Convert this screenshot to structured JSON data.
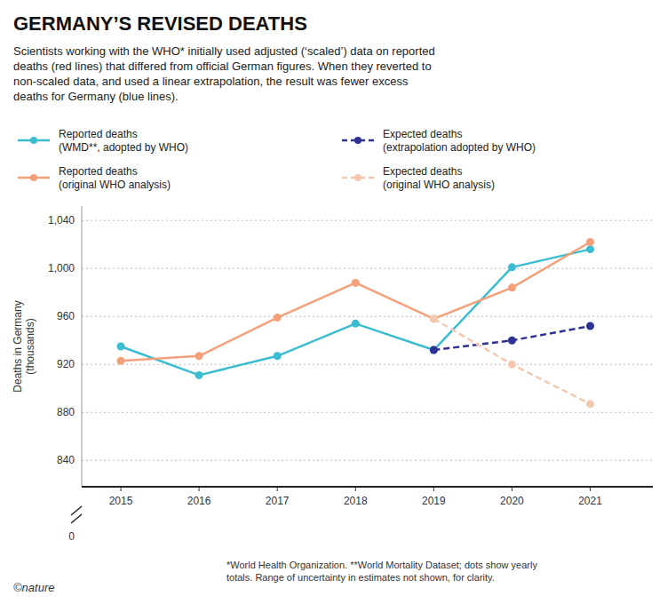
{
  "chart_data": {
    "type": "line",
    "title": "GERMANY’S REVISED DEATHS",
    "subtitle": "Scientists working with the WHO* initially used adjusted (‘scaled’) data on reported\ndeaths (red lines) that differed from official German figures. When they reverted to\nnon-scaled data, and used a linear extrapolation, the result was fewer excess\ndeaths for Germany (blue lines).",
    "x": [
      2015,
      2016,
      2017,
      2018,
      2019,
      2020,
      2021
    ],
    "series": [
      {
        "name": "Reported deaths\n(WMD**, adopted by WHO)",
        "color": "#3bbcd0",
        "line_style": "solid",
        "marker": "circle",
        "values": [
          935,
          911,
          927,
          954,
          932,
          1001,
          1016
        ]
      },
      {
        "name": "Expected deaths\n(extrapolation adopted by WHO)",
        "color": "#2e3192",
        "line_style": "dashed",
        "marker": "circle",
        "values": [
          null,
          null,
          null,
          null,
          932,
          940,
          952
        ]
      },
      {
        "name": "Reported deaths\n(original WHO analysis)",
        "color": "#f4a07a",
        "line_style": "solid",
        "marker": "circle",
        "values": [
          923,
          927,
          959,
          988,
          958,
          984,
          1022
        ]
      },
      {
        "name": "Expected deaths\n(original WHO analysis)",
        "color": "#f2c9b0",
        "line_style": "dashed",
        "marker": "circle",
        "values": [
          null,
          null,
          null,
          null,
          958,
          920,
          887
        ]
      }
    ],
    "xlim": [
      2014.5,
      2021.8
    ],
    "xticks": [
      2015,
      2016,
      2017,
      2018,
      2019,
      2020,
      2021
    ],
    "ylim": [
      818,
      1052
    ],
    "yticks": [
      840,
      880,
      920,
      960,
      {
        "value": 1000,
        "label": "1,000"
      },
      {
        "value": 1040,
        "label": "1,040"
      }
    ],
    "y_label": "Deaths in Germany\n(thousands)",
    "grid": true,
    "legend": "top",
    "annotations": [
      {
        "text": "0"
      }
    ],
    "footnote": "*World Health Organization. **World Mortality Dataset; dots show yearly\ntotals. Range of uncertainty in estimates not shown, for clarity.",
    "credit": "©nature"
  }
}
